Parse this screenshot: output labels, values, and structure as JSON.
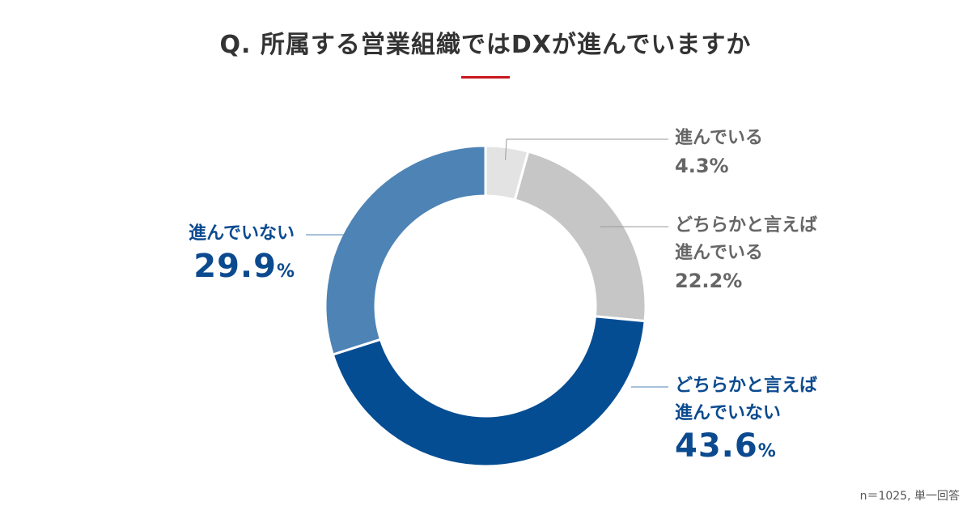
{
  "title": "Q. 所属する営業組織ではDXが進んでいますか",
  "colors": {
    "title_rule": "#c8161d",
    "segments": [
      "#e3e3e3",
      "#c6c6c6",
      "#054d93",
      "#4e83b6"
    ],
    "gray_text": "#666666",
    "blue_text": "#0b4a8f"
  },
  "chart_data": {
    "type": "pie",
    "variant": "donut",
    "title": "Q. 所属する営業組織ではDXが進んでいますか",
    "unit": "%",
    "categories": [
      "進んでいる",
      "どちらかと言えば進んでいる",
      "どちらかと言えば進んでいない",
      "進んでいない"
    ],
    "values": [
      4.3,
      22.2,
      43.6,
      29.9
    ],
    "start": "12 o'clock",
    "direction": "clockwise"
  },
  "labels": [
    {
      "lines": [
        "進んでいる"
      ],
      "value": "4.3",
      "unit": "%",
      "value_text": "4.3%"
    },
    {
      "lines": [
        "どちらかと言えば",
        "進んでいる"
      ],
      "value": "22.2",
      "unit": "%",
      "value_text": "22.2%"
    },
    {
      "lines": [
        "どちらかと言えば",
        "進んでいない"
      ],
      "value": "43.6",
      "unit": "%",
      "value_text": "43.6%"
    },
    {
      "lines": [
        "進んでいない"
      ],
      "value": "29.9",
      "unit": "%",
      "value_text": "29.9%"
    }
  ],
  "note": "n＝1025, 単一回答"
}
